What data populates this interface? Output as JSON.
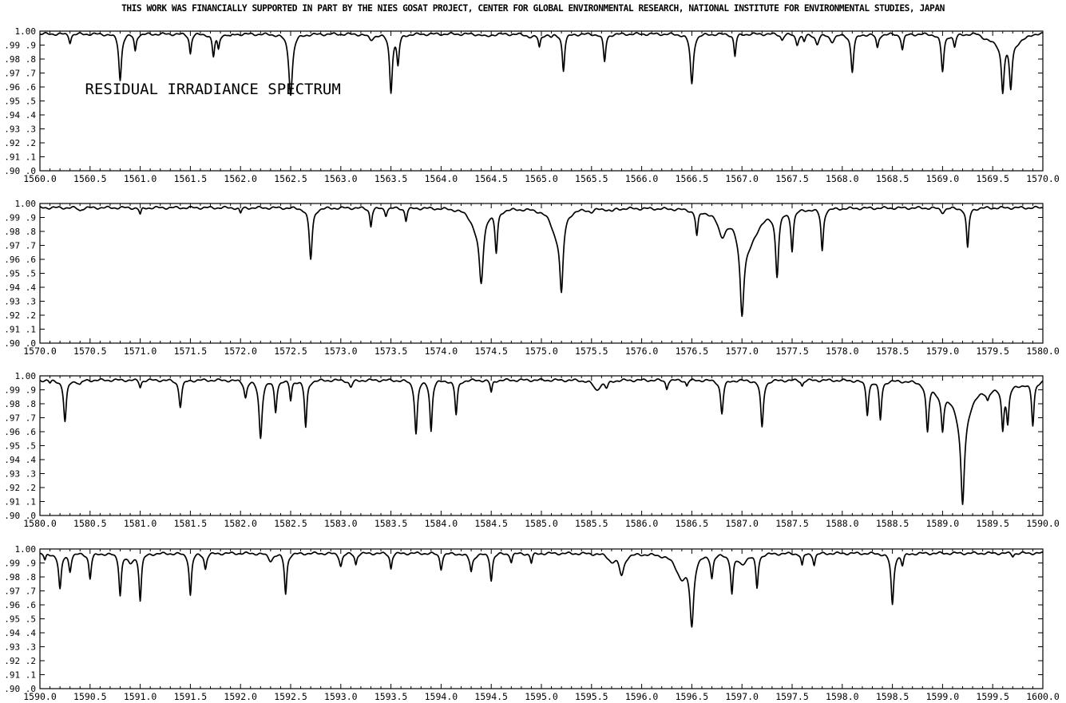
{
  "credit_text": "THIS WORK WAS FINANCIALLY SUPPORTED IN PART BY THE NIES GOSAT PROJECT, CENTER FOR GLOBAL ENVIRONMENTAL RESEARCH, NATIONAL INSTITUTE FOR ENVIRONMENTAL STUDIES, JAPAN",
  "chart_data": [
    {
      "type": "line",
      "title": "RESIDUAL IRRADIANCE SPECTRUM",
      "xlim": [
        1560.0,
        1570.0
      ],
      "ylim": [
        0.9,
        1.0
      ],
      "x_ticks": [
        "1560.0",
        "1560.5",
        "1561.0",
        "1561.5",
        "1562.0",
        "1562.5",
        "1563.0",
        "1563.5",
        "1564.0",
        "1564.5",
        "1565.0",
        "1565.5",
        "1566.0",
        "1566.5",
        "1567.0",
        "1567.5",
        "1568.0",
        "1568.5",
        "1569.0",
        "1569.5",
        "1570.0"
      ],
      "y_ticks": [
        ".90 .0",
        ".91 .1",
        ".92 .2",
        ".93 .3",
        ".94 .4",
        ".95 .5",
        ".96 .6",
        ".97 .7",
        ".98 .8",
        ".99 .9",
        "1.00"
      ],
      "baseline": 0.998,
      "lines": [
        [
          1560.3,
          0.992,
          0.012
        ],
        [
          1560.8,
          0.965,
          0.016
        ],
        [
          1560.95,
          0.986,
          0.012
        ],
        [
          1561.5,
          0.984,
          0.012
        ],
        [
          1561.73,
          0.982,
          0.014
        ],
        [
          1561.78,
          0.988,
          0.012
        ],
        [
          1561.9,
          0.996,
          0.015
        ],
        [
          1562.5,
          0.955,
          0.022
        ],
        [
          1563.3,
          0.994,
          0.03
        ],
        [
          1563.5,
          0.957,
          0.016
        ],
        [
          1563.57,
          0.977,
          0.014
        ],
        [
          1564.45,
          0.996,
          0.04
        ],
        [
          1564.9,
          0.996,
          0.05
        ],
        [
          1564.98,
          0.989,
          0.012
        ],
        [
          1565.1,
          0.996,
          0.02
        ],
        [
          1565.22,
          0.972,
          0.014
        ],
        [
          1565.63,
          0.978,
          0.014
        ],
        [
          1566.5,
          0.962,
          0.018
        ],
        [
          1566.93,
          0.982,
          0.012
        ],
        [
          1567.4,
          0.994,
          0.016
        ],
        [
          1567.55,
          0.991,
          0.016
        ],
        [
          1567.62,
          0.993,
          0.014
        ],
        [
          1567.75,
          0.991,
          0.02
        ],
        [
          1567.9,
          0.993,
          0.03
        ],
        [
          1568.1,
          0.971,
          0.016
        ],
        [
          1568.35,
          0.988,
          0.014
        ],
        [
          1568.6,
          0.987,
          0.014
        ],
        [
          1569.0,
          0.971,
          0.016
        ],
        [
          1569.12,
          0.989,
          0.014
        ],
        [
          1569.6,
          0.964,
          0.016
        ],
        [
          1569.68,
          0.966,
          0.016
        ]
      ],
      "tails": [
        [
          1569.35,
          1569.9,
          0.991
        ]
      ]
    },
    {
      "type": "line",
      "xlim": [
        1570.0,
        1580.0
      ],
      "ylim": [
        0.9,
        1.0
      ],
      "x_ticks": [
        "1570.0",
        "1570.5",
        "1571.0",
        "1571.5",
        "1572.0",
        "1572.5",
        "1573.0",
        "1573.5",
        "1574.0",
        "1574.5",
        "1575.0",
        "1575.5",
        "1576.0",
        "1576.5",
        "1577.0",
        "1577.5",
        "1578.0",
        "1578.5",
        "1579.0",
        "1579.5",
        "1580.0"
      ],
      "y_ticks": [
        ".90 .0",
        ".91 .1",
        ".92 .2",
        ".93 .3",
        ".94 .4",
        ".95 .5",
        ".96 .6",
        ".97 .7",
        ".98 .8",
        ".99 .9",
        "1.00"
      ],
      "baseline": 0.997,
      "lines": [
        [
          1570.4,
          0.995,
          0.02
        ],
        [
          1571.0,
          0.992,
          0.012
        ],
        [
          1572.0,
          0.993,
          0.012
        ],
        [
          1572.7,
          0.96,
          0.018
        ],
        [
          1573.3,
          0.984,
          0.012
        ],
        [
          1573.45,
          0.992,
          0.012
        ],
        [
          1573.65,
          0.988,
          0.012
        ],
        [
          1574.4,
          0.951,
          0.025
        ],
        [
          1574.55,
          0.967,
          0.015
        ],
        [
          1574.35,
          0.985,
          0.07
        ],
        [
          1575.2,
          0.947,
          0.02
        ],
        [
          1575.15,
          0.98,
          0.07
        ],
        [
          1575.5,
          0.995,
          0.03
        ],
        [
          1575.7,
          0.995,
          0.03
        ],
        [
          1576.55,
          0.979,
          0.014
        ],
        [
          1576.8,
          0.982,
          0.05
        ],
        [
          1577.0,
          0.944,
          0.022
        ],
        [
          1577.05,
          0.97,
          0.12
        ],
        [
          1577.35,
          0.952,
          0.018
        ],
        [
          1577.5,
          0.969,
          0.014
        ],
        [
          1577.8,
          0.967,
          0.014
        ],
        [
          1579.0,
          0.994,
          0.025
        ],
        [
          1579.25,
          0.968,
          0.014
        ]
      ],
      "tails": []
    },
    {
      "type": "line",
      "xlim": [
        1580.0,
        1590.0
      ],
      "ylim": [
        0.9,
        1.0
      ],
      "x_ticks": [
        "1580.0",
        "1580.5",
        "1581.0",
        "1581.5",
        "1582.0",
        "1582.5",
        "1583.0",
        "1583.5",
        "1584.0",
        "1584.5",
        "1585.0",
        "1585.5",
        "1586.0",
        "1586.5",
        "1587.0",
        "1587.5",
        "1588.0",
        "1588.5",
        "1589.0",
        "1589.5",
        "1590.0"
      ],
      "y_ticks": [
        ".90 .0",
        ".91 .1",
        ".92 .2",
        ".93 .3",
        ".94 .4",
        ".95 .5",
        ".96 .6",
        ".97 .7",
        ".98 .8",
        ".99 .9",
        "1.00"
      ],
      "baseline": 0.997,
      "lines": [
        [
          1580.1,
          0.995,
          0.012
        ],
        [
          1580.25,
          0.967,
          0.016
        ],
        [
          1580.4,
          0.994,
          0.02
        ],
        [
          1581.0,
          0.992,
          0.012
        ],
        [
          1581.4,
          0.978,
          0.016
        ],
        [
          1582.05,
          0.985,
          0.016
        ],
        [
          1582.2,
          0.956,
          0.018
        ],
        [
          1582.35,
          0.975,
          0.014
        ],
        [
          1582.5,
          0.983,
          0.012
        ],
        [
          1582.65,
          0.963,
          0.014
        ],
        [
          1583.1,
          0.992,
          0.02
        ],
        [
          1583.75,
          0.959,
          0.016
        ],
        [
          1583.9,
          0.961,
          0.014
        ],
        [
          1584.15,
          0.972,
          0.014
        ],
        [
          1584.5,
          0.988,
          0.012
        ],
        [
          1585.55,
          0.99,
          0.04
        ],
        [
          1585.65,
          0.992,
          0.02
        ],
        [
          1586.25,
          0.991,
          0.012
        ],
        [
          1586.45,
          0.993,
          0.012
        ],
        [
          1586.8,
          0.973,
          0.016
        ],
        [
          1587.2,
          0.963,
          0.016
        ],
        [
          1587.6,
          0.993,
          0.012
        ],
        [
          1588.25,
          0.973,
          0.014
        ],
        [
          1588.38,
          0.969,
          0.014
        ],
        [
          1588.85,
          0.963,
          0.016
        ],
        [
          1589.0,
          0.974,
          0.014
        ],
        [
          1589.0,
          0.99,
          0.07
        ],
        [
          1589.2,
          0.94,
          0.02
        ],
        [
          1589.2,
          0.97,
          0.08
        ],
        [
          1589.45,
          0.991,
          0.016
        ],
        [
          1589.6,
          0.968,
          0.014
        ],
        [
          1589.65,
          0.972,
          0.014
        ],
        [
          1589.9,
          0.966,
          0.014
        ]
      ],
      "tails": [
        [
          1588.8,
          1590.0,
          0.992
        ]
      ]
    },
    {
      "type": "line",
      "xlim": [
        1590.0,
        1600.0
      ],
      "ylim": [
        0.9,
        1.0
      ],
      "x_ticks": [
        "1590.0",
        "1590.5",
        "1591.0",
        "1591.5",
        "1592.0",
        "1592.5",
        "1593.0",
        "1593.5",
        "1594.0",
        "1594.5",
        "1595.0",
        "1595.5",
        "1596.0",
        "1596.5",
        "1597.0",
        "1597.5",
        "1598.0",
        "1598.5",
        "1599.0",
        "1599.5",
        "1600.0"
      ],
      "y_ticks": [
        ".90 .0",
        ".91 .1",
        ".92 .2",
        ".93 .3",
        ".94 .4",
        ".95 .5",
        ".96 .6",
        ".97 .7",
        ".98 .8",
        ".99 .9",
        "1.00"
      ],
      "baseline": 0.997,
      "lines": [
        [
          1590.05,
          0.992,
          0.012
        ],
        [
          1590.2,
          0.971,
          0.016
        ],
        [
          1590.3,
          0.985,
          0.014
        ],
        [
          1590.5,
          0.979,
          0.014
        ],
        [
          1590.8,
          0.968,
          0.014
        ],
        [
          1590.9,
          0.99,
          0.03
        ],
        [
          1591.0,
          0.964,
          0.014
        ],
        [
          1591.5,
          0.967,
          0.014
        ],
        [
          1591.65,
          0.986,
          0.014
        ],
        [
          1592.45,
          0.968,
          0.014
        ],
        [
          1592.3,
          0.992,
          0.03
        ],
        [
          1593.0,
          0.988,
          0.016
        ],
        [
          1593.15,
          0.989,
          0.012
        ],
        [
          1593.5,
          0.986,
          0.012
        ],
        [
          1594.0,
          0.986,
          0.014
        ],
        [
          1594.3,
          0.988,
          0.012
        ],
        [
          1594.3,
          0.993,
          0.04
        ],
        [
          1594.5,
          0.978,
          0.014
        ],
        [
          1594.7,
          0.991,
          0.012
        ],
        [
          1594.9,
          0.99,
          0.012
        ],
        [
          1595.8,
          0.982,
          0.03
        ],
        [
          1595.7,
          0.992,
          0.04
        ],
        [
          1596.5,
          0.95,
          0.022
        ],
        [
          1596.4,
          0.98,
          0.07
        ],
        [
          1596.7,
          0.981,
          0.014
        ],
        [
          1596.9,
          0.97,
          0.014
        ],
        [
          1597.15,
          0.973,
          0.014
        ],
        [
          1597.0,
          0.99,
          0.05
        ],
        [
          1597.6,
          0.988,
          0.012
        ],
        [
          1597.72,
          0.989,
          0.012
        ],
        [
          1598.5,
          0.96,
          0.016
        ],
        [
          1598.6,
          0.989,
          0.014
        ],
        [
          1599.7,
          0.995,
          0.012
        ]
      ],
      "tails": []
    }
  ]
}
